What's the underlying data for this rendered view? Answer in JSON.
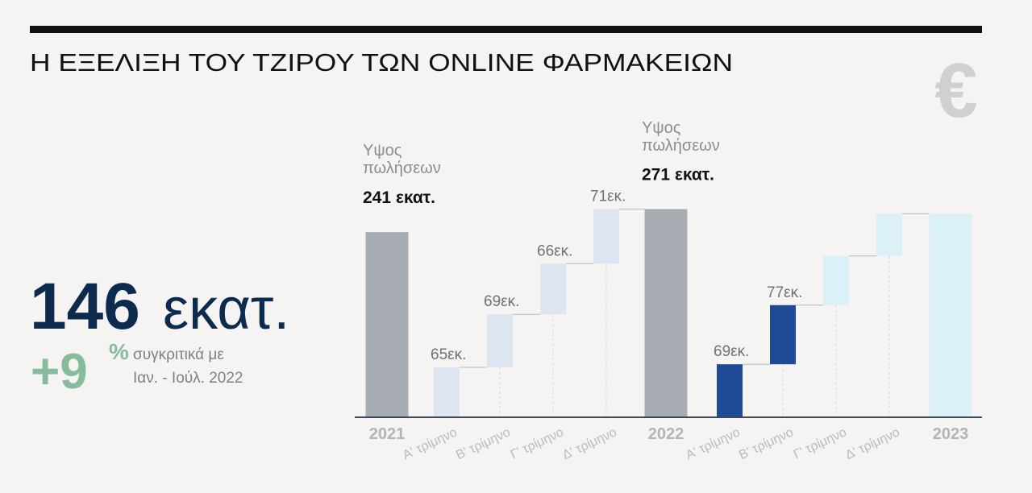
{
  "header": {
    "title": "Η ΕΞΕΛΙΞΗ ΤΟΥ ΤΖΙΡΟΥ ΤΩΝ ONLINE ΦΑΡΜΑΚΕΙΩΝ",
    "icon_symbol": "€"
  },
  "kpi": {
    "value": 146,
    "unit": "εκατ.",
    "change": "+9",
    "change_unit": "%",
    "note_lines": [
      "συγκριτικά με",
      "Ιαν. - Ιούλ. 2022"
    ]
  },
  "chart_data": {
    "type": "waterfall",
    "categories": [
      "2021",
      "Α' τρίμηνο",
      "Β' τρίμηνο",
      "Γ' τρίμηνο",
      "Δ' τρίμηνο",
      "2022",
      "Α' τρίμηνο",
      "Β' τρίμηνο",
      "Γ' τρίμηνο",
      "Δ' τρίμηνο",
      "2023"
    ],
    "measure": [
      "total",
      "relative",
      "relative",
      "relative",
      "relative",
      "total",
      "relative",
      "relative",
      "relative",
      "relative",
      "total"
    ],
    "values": [
      241,
      65,
      69,
      66,
      71,
      271,
      69,
      77,
      64,
      55,
      265
    ],
    "value_labels": [
      "241 εκατ.",
      "65εκ.",
      "69εκ.",
      "66εκ.",
      "71εκ.",
      "271 εκατ.",
      "69εκ.",
      "77εκ.",
      null,
      null,
      null
    ],
    "total_caption": "Υψος πωλήσεων",
    "colors": [
      "#a7abb2",
      "#dde5f0",
      "#dde5f0",
      "#dde5f0",
      "#dde5f0",
      "#a7abb2",
      "#1f4a96",
      "#1f4a96",
      "#dcf1f7",
      "#dcf1f7",
      "#dcf1f7"
    ],
    "ylim": [
      0,
      280
    ]
  }
}
